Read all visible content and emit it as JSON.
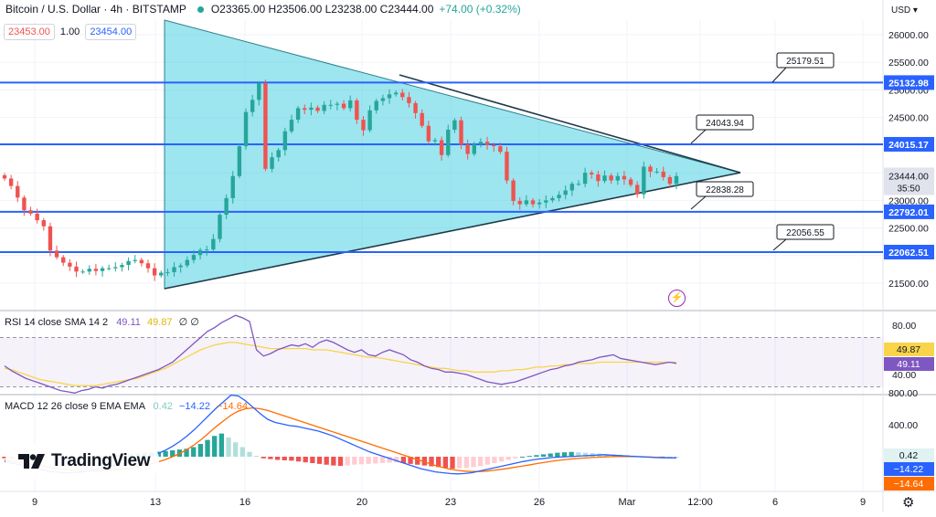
{
  "header": {
    "symbol": "Bitcoin / U.S. Dollar · 4h · BITSTAMP",
    "ohlc": "O23365.00 H23506.00 L23238.00 C23444.00",
    "change": "+74.00 (+0.32%)",
    "sell_price": "23453.00",
    "quantity": "1.00",
    "buy_price": "23454.00"
  },
  "currency": "USD",
  "accent_colors": {
    "up": "#26a69a",
    "down": "#ef5350",
    "level": "#2962ff",
    "triangle_fill": "#4dd0e1",
    "rsi": "#7e57c2",
    "rsi_sma": "#f9d44b",
    "macd": "#2962ff",
    "signal": "#ff6d00"
  },
  "icons": {
    "live_dot": "live-dot-icon",
    "bolt": "lightning-icon",
    "settings": "gear-icon"
  },
  "logo_text": "TradingView",
  "chart_data": [
    {
      "type": "candlestick",
      "title": "Bitcoin / U.S. Dollar · 4h · BITSTAMP",
      "ylim": [
        21200,
        26250
      ],
      "y_ticks": [
        "26000.00",
        "25500.00",
        "25000.00",
        "24500.00",
        "24000.00",
        "23500.00",
        "23000.00",
        "22500.00",
        "22000.00",
        "21500.00"
      ],
      "x_ticks": [
        "9",
        "13",
        "16",
        "20",
        "23",
        "26",
        "Mar",
        "12:00",
        "6",
        "9"
      ],
      "close": [
        23395,
        23260,
        23050,
        22820,
        22760,
        22640,
        22530,
        22090,
        21970,
        21870,
        21800,
        21710,
        21710,
        21760,
        21720,
        21770,
        21770,
        21790,
        21830,
        21900,
        21920,
        21860,
        21770,
        21640,
        21690,
        21700,
        21790,
        21820,
        21920,
        22010,
        22100,
        22110,
        22300,
        22740,
        23040,
        23440,
        23980,
        24600,
        24820,
        25120,
        23570,
        23780,
        23910,
        24250,
        24460,
        24670,
        24640,
        24680,
        24620,
        24730,
        24730,
        24750,
        24670,
        24810,
        24460,
        24270,
        24630,
        24800,
        24850,
        24920,
        24950,
        24870,
        24760,
        24580,
        24350,
        24070,
        24090,
        23820,
        24280,
        24450,
        24010,
        23840,
        24020,
        24060,
        24000,
        23980,
        23880,
        23360,
        22990,
        22930,
        23000,
        22930,
        22960,
        23000,
        23040,
        23100,
        23180,
        23300,
        23300,
        23500,
        23470,
        23350,
        23450,
        23360,
        23440,
        23380,
        23280,
        23110,
        23610,
        23520,
        23520,
        23420,
        23300,
        23440
      ],
      "levels": [
        {
          "value": 25132.98,
          "label": "25132.98"
        },
        {
          "value": 24015.17,
          "label": "24015.17"
        },
        {
          "value": 22792.01,
          "label": "22792.01"
        },
        {
          "value": 22062.51,
          "label": "22062.51"
        }
      ],
      "callouts": [
        "25179.51",
        "24043.94",
        "22838.28",
        "22056.55"
      ],
      "last_price": "23444.00",
      "countdown": "35:50",
      "pattern": "symmetrical triangle"
    },
    {
      "type": "line",
      "title": "RSI 14 close SMA 14 2",
      "values_label": {
        "rsi": "49.11",
        "sma": "49.87",
        "extra": "∅ ∅"
      },
      "y_ticks": [
        "80.00",
        "40.00"
      ],
      "band": [
        30,
        70
      ],
      "ylim": [
        25,
        90
      ],
      "series": [
        {
          "name": "RSI",
          "values": [
            47,
            43,
            40,
            37,
            35,
            33,
            31,
            29,
            27,
            26,
            25,
            27,
            28,
            30,
            29,
            31,
            32,
            34,
            36,
            38,
            40,
            42,
            44,
            47,
            50,
            55,
            60,
            65,
            70,
            75,
            78,
            82,
            85,
            88,
            86,
            83,
            60,
            55,
            57,
            60,
            62,
            64,
            63,
            65,
            62,
            66,
            68,
            66,
            63,
            60,
            58,
            60,
            56,
            55,
            58,
            60,
            58,
            56,
            52,
            50,
            47,
            45,
            44,
            42,
            42,
            41,
            40,
            38,
            36,
            34,
            33,
            32,
            33,
            34,
            36,
            38,
            40,
            42,
            44,
            45,
            47,
            48,
            50,
            51,
            52,
            54,
            55,
            56,
            53,
            52,
            51,
            50,
            49,
            48,
            49,
            50,
            49
          ]
        },
        {
          "name": "SMA",
          "values": [
            45,
            44,
            42,
            40,
            38,
            36,
            35,
            34,
            33,
            32,
            31,
            31,
            31,
            31,
            32,
            33,
            34,
            35,
            36,
            37,
            39,
            41,
            43,
            45,
            48,
            51,
            54,
            57,
            60,
            62,
            64,
            65,
            66,
            66,
            65,
            64,
            63,
            62,
            61,
            61,
            61,
            61,
            61,
            61,
            60,
            60,
            60,
            59,
            58,
            57,
            56,
            55,
            54,
            54,
            53,
            52,
            51,
            50,
            49,
            48,
            47,
            46,
            45,
            45,
            44,
            43,
            43,
            42,
            42,
            42,
            42,
            43,
            43,
            44,
            44,
            45,
            46,
            46,
            47,
            47,
            48,
            48,
            49,
            49,
            49,
            50,
            50,
            50,
            50,
            50,
            50,
            50,
            50,
            50,
            50,
            50,
            50
          ]
        }
      ],
      "last_values": [
        "49.87",
        "49.11"
      ]
    },
    {
      "type": "bar",
      "title": "MACD 12 26 close 9 EMA EMA",
      "values_label": {
        "histogram": "0.42",
        "macd": "−14.22",
        "signal": "−14.64"
      },
      "y_ticks": [
        "800.00",
        "400.00"
      ],
      "ylim": [
        -300,
        850
      ],
      "histogram": [
        -20,
        -25,
        -22,
        -18,
        -15,
        -12,
        -10,
        -8,
        -6,
        -4,
        -2,
        2,
        5,
        8,
        12,
        16,
        20,
        26,
        32,
        40,
        48,
        55,
        62,
        70,
        80,
        90,
        100,
        120,
        160,
        210,
        260,
        290,
        240,
        180,
        120,
        60,
        10,
        -20,
        -30,
        -40,
        -45,
        -50,
        -60,
        -70,
        -80,
        -90,
        -100,
        -110,
        -115,
        -110,
        -100,
        -95,
        -90,
        -85,
        -80,
        -75,
        -70,
        -80,
        -90,
        -100,
        -110,
        -120,
        -130,
        -140,
        -150,
        -145,
        -140,
        -130,
        -120,
        -100,
        -80,
        -60,
        -40,
        -20,
        0,
        10,
        20,
        30,
        40,
        50,
        55,
        60,
        55,
        50,
        45,
        40,
        35,
        30,
        25,
        20,
        15,
        10,
        5,
        0,
        2,
        1,
        0
      ],
      "series": [
        {
          "name": "MACD",
          "values": [
            -60,
            -80,
            -100,
            -120,
            -140,
            -160,
            -180,
            -190,
            -200,
            -200,
            -195,
            -185,
            -170,
            -150,
            -130,
            -110,
            -90,
            -70,
            -50,
            -20,
            10,
            40,
            80,
            130,
            190,
            260,
            340,
            430,
            520,
            610,
            690,
            770,
            760,
            700,
            620,
            540,
            470,
            430,
            410,
            390,
            380,
            360,
            340,
            320,
            290,
            260,
            220,
            180,
            140,
            100,
            60,
            30,
            0,
            -30,
            -60,
            -90,
            -120,
            -150,
            -170,
            -190,
            -200,
            -210,
            -215,
            -210,
            -200,
            -180,
            -160,
            -140,
            -120,
            -100,
            -80,
            -60,
            -45,
            -30,
            -20,
            -10,
            -5,
            0,
            5,
            10,
            15,
            20,
            25,
            20,
            15,
            10,
            5,
            0,
            -5,
            -10,
            -12,
            -14,
            -14
          ]
        },
        {
          "name": "Signal",
          "values": [
            -40,
            -55,
            -70,
            -85,
            -100,
            -115,
            -130,
            -145,
            -155,
            -165,
            -172,
            -178,
            -180,
            -178,
            -172,
            -165,
            -155,
            -145,
            -130,
            -110,
            -90,
            -65,
            -35,
            0,
            40,
            90,
            150,
            220,
            300,
            380,
            450,
            520,
            570,
            600,
            610,
            600,
            580,
            550,
            520,
            490,
            460,
            430,
            400,
            370,
            340,
            310,
            280,
            250,
            220,
            190,
            160,
            130,
            100,
            70,
            40,
            10,
            -20,
            -50,
            -80,
            -110,
            -135,
            -155,
            -170,
            -180,
            -185,
            -185,
            -180,
            -170,
            -158,
            -145,
            -130,
            -115,
            -100,
            -85,
            -70,
            -56,
            -44,
            -34,
            -25,
            -18,
            -12,
            -7,
            -3,
            0,
            2,
            3,
            2,
            0,
            -3,
            -6,
            -9,
            -12,
            -14
          ]
        }
      ],
      "last_values": [
        "0.42",
        "−14.22",
        "−14.64"
      ]
    }
  ]
}
